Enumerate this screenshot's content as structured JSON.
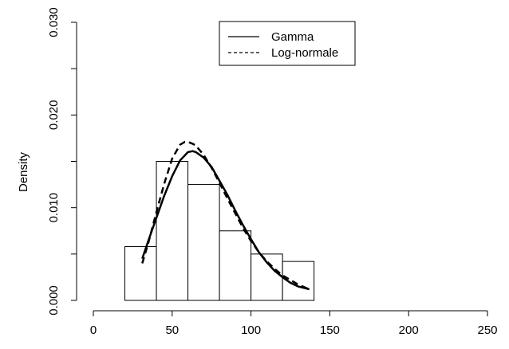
{
  "chart_data": {
    "type": "bar",
    "title": "",
    "xlabel": "",
    "ylabel": "Density",
    "xlim": [
      0,
      250
    ],
    "ylim": [
      0,
      0.03
    ],
    "x_ticks": [
      "0",
      "50",
      "100",
      "150",
      "200",
      "250"
    ],
    "y_ticks": [
      "0.000",
      "0.010",
      "0.020",
      "0.030"
    ],
    "histogram": {
      "bins": [
        [
          20,
          40
        ],
        [
          40,
          60
        ],
        [
          60,
          80
        ],
        [
          80,
          100
        ],
        [
          100,
          120
        ],
        [
          120,
          140
        ]
      ],
      "density": [
        0.0058,
        0.015,
        0.0125,
        0.0075,
        0.005,
        0.0042
      ]
    },
    "series": [
      {
        "name": "Gamma",
        "style": "solid",
        "x": [
          31,
          35,
          40,
          45,
          50,
          55,
          60,
          63,
          65,
          70,
          75,
          80,
          85,
          90,
          95,
          100,
          105,
          110,
          115,
          120,
          125,
          130,
          137
        ],
        "y": [
          0.0045,
          0.0065,
          0.0089,
          0.0113,
          0.0134,
          0.0151,
          0.016,
          0.0161,
          0.016,
          0.0154,
          0.0144,
          0.0129,
          0.0114,
          0.0097,
          0.0081,
          0.0066,
          0.0052,
          0.0041,
          0.0032,
          0.0025,
          0.0019,
          0.0015,
          0.0012
        ]
      },
      {
        "name": "Log-normale",
        "style": "dashed",
        "x": [
          31,
          35,
          40,
          45,
          50,
          55,
          58,
          60,
          63,
          65,
          70,
          75,
          80,
          85,
          90,
          95,
          100,
          105,
          110,
          115,
          120,
          125,
          130,
          137
        ],
        "y": [
          0.004,
          0.0063,
          0.0095,
          0.0126,
          0.0153,
          0.0168,
          0.0171,
          0.0171,
          0.0169,
          0.0167,
          0.0157,
          0.0143,
          0.0127,
          0.011,
          0.0094,
          0.0078,
          0.0064,
          0.0052,
          0.0042,
          0.0034,
          0.0027,
          0.0022,
          0.0017,
          0.0012
        ]
      }
    ],
    "legend": {
      "position": "top-center",
      "entries": [
        {
          "label": "Gamma",
          "style": "solid"
        },
        {
          "label": "Log-normale",
          "style": "dashed"
        }
      ]
    },
    "grid": false
  }
}
